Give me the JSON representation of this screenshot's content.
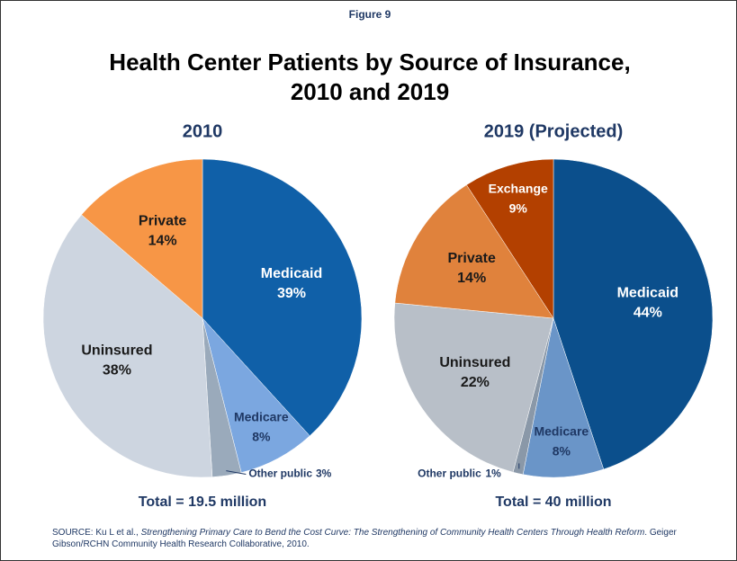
{
  "figure_label": "Figure 9",
  "title_lines": [
    "Health Center Patients by Source of Insurance,",
    "2010 and 2019"
  ],
  "source": {
    "prefix": "SOURCE: Ku L et al., ",
    "italic": "Strengthening Primary Care to Bend the Cost Curve: The Strengthening of Community Health Centers Through Health Reform",
    "suffix": ". Geiger Gibson/RCHN Community Health Research Collaborative, 2010."
  },
  "chart_data": [
    {
      "type": "pie",
      "subtitle": "2010",
      "total": "Total = 19.5 million",
      "categories": [
        "Medicaid",
        "Medicare",
        "Other public",
        "Uninsured",
        "Private"
      ],
      "values": [
        39,
        8,
        3,
        38,
        14
      ],
      "value_labels": [
        "39%",
        "8%",
        "3%",
        "38%",
        "14%"
      ],
      "colors": [
        "#1060a8",
        "#7ba7e0",
        "#9aaabb",
        "#cdd5e0",
        "#f79646"
      ]
    },
    {
      "type": "pie",
      "subtitle": "2019 (Projected)",
      "total": "Total = 40 million",
      "categories": [
        "Medicaid",
        "Medicare",
        "Other public",
        "Uninsured",
        "Private",
        "Exchange"
      ],
      "values": [
        44,
        8,
        1,
        22,
        14,
        9
      ],
      "value_labels": [
        "44%",
        "8%",
        "1%",
        "22%",
        "14%",
        "9%"
      ],
      "colors": [
        "#0b4f8c",
        "#6a95c8",
        "#8a98a8",
        "#b8bfc8",
        "#e0823c",
        "#b34000"
      ]
    }
  ]
}
